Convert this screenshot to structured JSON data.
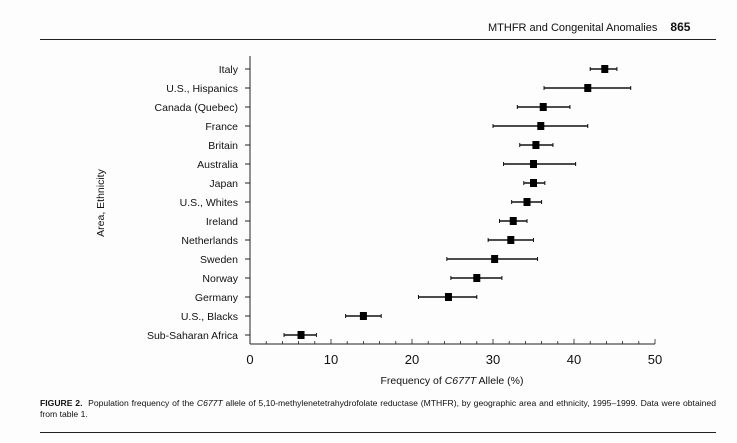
{
  "header": {
    "running_title": "MTHFR and Congenital Anomalies",
    "page_number": "865"
  },
  "caption": {
    "label": "FIGURE 2.",
    "text_before": "Population frequency of the ",
    "allele": "C677T",
    "text_after": " allele of 5,10-methylenetetrahydrofolate reductase (MTHFR), by geographic area and ethnicity, 1995–1999. Data were obtained from table 1."
  },
  "chart_data": {
    "type": "scatter",
    "subtype": "point estimate with error bars",
    "xlabel_prefix": "Frequency of ",
    "xlabel_italic": "C677T",
    "xlabel_suffix": " Allele (%)",
    "ylabel": "Area, Ethnicity",
    "xlim": [
      0,
      50
    ],
    "xticks": [
      "0",
      "10",
      "20",
      "30",
      "40",
      "50"
    ],
    "grid": false,
    "categories": [
      "Italy",
      "U.S., Hispanics",
      "Canada (Quebec)",
      "France",
      "Britain",
      "Australia",
      "Japan",
      "U.S., Whites",
      "Ireland",
      "Netherlands",
      "Sweden",
      "Norway",
      "Germany",
      "U.S., Blacks",
      "Sub-Saharan Africa"
    ],
    "values": [
      43.8,
      41.7,
      36.2,
      35.9,
      35.3,
      35.0,
      35.0,
      34.2,
      32.5,
      32.2,
      30.2,
      28.0,
      24.5,
      14.0,
      6.3
    ],
    "lower": [
      42.0,
      36.3,
      33.0,
      30.0,
      33.3,
      31.3,
      33.8,
      32.3,
      30.8,
      29.4,
      24.3,
      24.8,
      20.8,
      11.8,
      4.2
    ],
    "upper": [
      45.3,
      47.0,
      39.5,
      41.7,
      37.4,
      40.2,
      36.4,
      36.0,
      34.2,
      35.0,
      35.5,
      31.1,
      28.0,
      16.2,
      8.2
    ]
  }
}
